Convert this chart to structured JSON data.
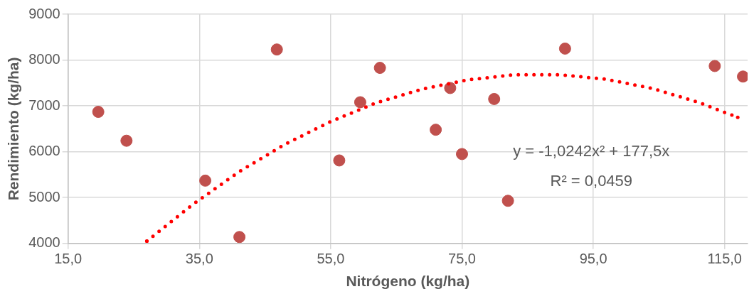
{
  "chart_data": {
    "type": "scatter",
    "xlabel": "Nitrógeno (kg/ha)",
    "ylabel": "Rendimiento (kg/ha)",
    "xlim": [
      15,
      118.5
    ],
    "xticks": [
      {
        "value": 15,
        "label": "15,0"
      },
      {
        "value": 35,
        "label": "35,0"
      },
      {
        "value": 55,
        "label": "55,0"
      },
      {
        "value": 75,
        "label": "75,0"
      },
      {
        "value": 95,
        "label": "95,0"
      },
      {
        "value": 115,
        "label": "115,0"
      }
    ],
    "ylim": [
      4000,
      9000
    ],
    "yticks": [
      4000,
      5000,
      6000,
      7000,
      8000,
      9000
    ],
    "grid": true,
    "legend": false,
    "series": [
      {
        "type": "scatter",
        "color": "#c0504d",
        "marker": "circle",
        "x": [
          19.6,
          23.9,
          35.9,
          41.1,
          46.8,
          56.3,
          59.5,
          62.5,
          71.0,
          73.2,
          75.0,
          79.9,
          82.0,
          90.7,
          113.5,
          117.8
        ],
        "values": [
          6870,
          6240,
          5370,
          4140,
          8230,
          5810,
          7080,
          7830,
          6480,
          7390,
          5950,
          7150,
          4930,
          8250,
          7870,
          7640
        ]
      },
      {
        "type": "line",
        "color": "#ff0000",
        "marker": "none",
        "line_style": "dotted",
        "x": [
          27,
          34,
          41,
          48,
          55,
          62,
          69,
          76,
          83,
          90,
          97,
          104,
          111,
          117
        ],
        "values": [
          4050,
          4850,
          5560,
          6160,
          6660,
          7070,
          7370,
          7570,
          7680,
          7680,
          7580,
          7380,
          7080,
          6750
        ]
      }
    ],
    "annotations": [
      "y = -1,0242x² + 177,5x",
      "R² = 0,0459"
    ]
  }
}
